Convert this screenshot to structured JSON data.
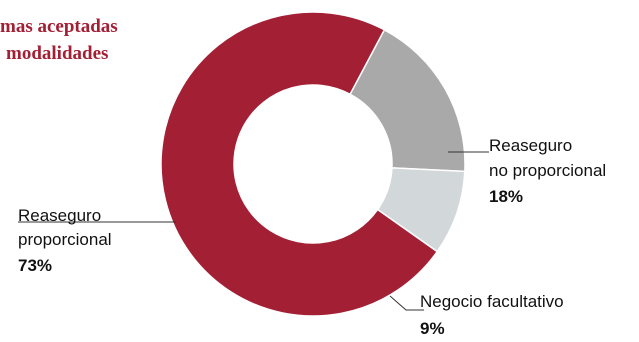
{
  "title_lines": [
    "mas aceptadas",
    "modalidades"
  ],
  "chart_data": {
    "type": "pie",
    "donut": true,
    "slices": [
      {
        "label_lines": [
          "Reaseguro",
          "proporcional"
        ],
        "pct_label": "73%",
        "value": 73,
        "color": "#a31f34"
      },
      {
        "label_lines": [
          "Reaseguro",
          "no proporcional"
        ],
        "pct_label": "18%",
        "value": 18,
        "color": "#a9a9a9"
      },
      {
        "label_lines": [
          "Negocio facultativo"
        ],
        "pct_label": "9%",
        "value": 9,
        "color": "#d2d7da"
      }
    ]
  }
}
